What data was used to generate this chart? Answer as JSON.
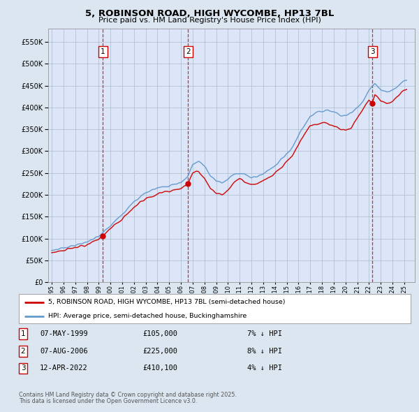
{
  "title": "5, ROBINSON ROAD, HIGH WYCOMBE, HP13 7BL",
  "subtitle": "Price paid vs. HM Land Registry's House Price Index (HPI)",
  "red_label": "5, ROBINSON ROAD, HIGH WYCOMBE, HP13 7BL (semi-detached house)",
  "blue_label": "HPI: Average price, semi-detached house, Buckinghamshire",
  "transactions": [
    {
      "num": 1,
      "date": "07-MAY-1999",
      "price": 105000,
      "pct": "7%",
      "dir": "↓",
      "x_year": 1999.36
    },
    {
      "num": 2,
      "date": "07-AUG-2006",
      "price": 225000,
      "pct": "8%",
      "dir": "↓",
      "x_year": 2006.6
    },
    {
      "num": 3,
      "date": "12-APR-2022",
      "price": 410100,
      "pct": "4%",
      "dir": "↓",
      "x_year": 2022.28
    }
  ],
  "footnote1": "Contains HM Land Registry data © Crown copyright and database right 2025.",
  "footnote2": "This data is licensed under the Open Government Licence v3.0.",
  "outer_bg": "#dce6f0",
  "plot_bg": "#dce6f8",
  "grid_color": "#aabbcc",
  "red_color": "#cc0000",
  "blue_color": "#6699cc",
  "dashed_color": "#cc0000",
  "ylim": [
    0,
    580000
  ],
  "yticks": [
    0,
    50000,
    100000,
    150000,
    200000,
    250000,
    300000,
    350000,
    400000,
    450000,
    500000,
    550000
  ],
  "xlim_start": 1994.7,
  "xlim_end": 2025.9,
  "hpi_control_points": [
    [
      1995.0,
      72000
    ],
    [
      1996.0,
      78000
    ],
    [
      1997.0,
      84000
    ],
    [
      1998.0,
      93000
    ],
    [
      1999.0,
      104000
    ],
    [
      1999.36,
      113000
    ],
    [
      2000.0,
      130000
    ],
    [
      2001.0,
      155000
    ],
    [
      2002.0,
      185000
    ],
    [
      2003.0,
      205000
    ],
    [
      2004.0,
      215000
    ],
    [
      2005.0,
      220000
    ],
    [
      2006.0,
      228000
    ],
    [
      2006.6,
      243000
    ],
    [
      2007.0,
      270000
    ],
    [
      2007.5,
      278000
    ],
    [
      2008.0,
      265000
    ],
    [
      2008.5,
      245000
    ],
    [
      2009.0,
      232000
    ],
    [
      2009.5,
      228000
    ],
    [
      2010.0,
      235000
    ],
    [
      2010.5,
      248000
    ],
    [
      2011.0,
      252000
    ],
    [
      2011.5,
      245000
    ],
    [
      2012.0,
      240000
    ],
    [
      2012.5,
      242000
    ],
    [
      2013.0,
      248000
    ],
    [
      2013.5,
      255000
    ],
    [
      2014.0,
      265000
    ],
    [
      2014.5,
      280000
    ],
    [
      2015.0,
      295000
    ],
    [
      2015.5,
      310000
    ],
    [
      2016.0,
      335000
    ],
    [
      2016.5,
      360000
    ],
    [
      2017.0,
      380000
    ],
    [
      2017.5,
      388000
    ],
    [
      2018.0,
      392000
    ],
    [
      2018.5,
      395000
    ],
    [
      2019.0,
      390000
    ],
    [
      2019.5,
      385000
    ],
    [
      2020.0,
      382000
    ],
    [
      2020.5,
      388000
    ],
    [
      2021.0,
      400000
    ],
    [
      2021.5,
      415000
    ],
    [
      2022.0,
      440000
    ],
    [
      2022.28,
      450000
    ],
    [
      2022.5,
      455000
    ],
    [
      2023.0,
      440000
    ],
    [
      2023.5,
      435000
    ],
    [
      2024.0,
      440000
    ],
    [
      2024.5,
      450000
    ],
    [
      2025.0,
      462000
    ]
  ],
  "red_control_points": [
    [
      1995.0,
      68000
    ],
    [
      1996.0,
      73000
    ],
    [
      1997.0,
      79000
    ],
    [
      1998.0,
      87000
    ],
    [
      1999.0,
      98000
    ],
    [
      1999.36,
      105000
    ],
    [
      2000.0,
      122000
    ],
    [
      2001.0,
      145000
    ],
    [
      2002.0,
      172000
    ],
    [
      2003.0,
      192000
    ],
    [
      2004.0,
      200000
    ],
    [
      2005.0,
      208000
    ],
    [
      2006.0,
      215000
    ],
    [
      2006.6,
      225000
    ],
    [
      2007.0,
      250000
    ],
    [
      2007.5,
      255000
    ],
    [
      2008.0,
      238000
    ],
    [
      2008.5,
      215000
    ],
    [
      2009.0,
      205000
    ],
    [
      2009.5,
      200000
    ],
    [
      2010.0,
      210000
    ],
    [
      2010.5,
      228000
    ],
    [
      2011.0,
      238000
    ],
    [
      2011.5,
      230000
    ],
    [
      2012.0,
      222000
    ],
    [
      2012.5,
      225000
    ],
    [
      2013.0,
      232000
    ],
    [
      2013.5,
      240000
    ],
    [
      2014.0,
      250000
    ],
    [
      2014.5,
      262000
    ],
    [
      2015.0,
      275000
    ],
    [
      2015.5,
      292000
    ],
    [
      2016.0,
      315000
    ],
    [
      2016.5,
      340000
    ],
    [
      2017.0,
      358000
    ],
    [
      2017.5,
      362000
    ],
    [
      2018.0,
      365000
    ],
    [
      2018.5,
      365000
    ],
    [
      2019.0,
      358000
    ],
    [
      2019.5,
      352000
    ],
    [
      2020.0,
      348000
    ],
    [
      2020.5,
      355000
    ],
    [
      2021.0,
      375000
    ],
    [
      2021.5,
      395000
    ],
    [
      2022.0,
      418000
    ],
    [
      2022.28,
      410100
    ],
    [
      2022.5,
      430000
    ],
    [
      2023.0,
      415000
    ],
    [
      2023.5,
      408000
    ],
    [
      2024.0,
      415000
    ],
    [
      2024.5,
      425000
    ],
    [
      2025.0,
      440000
    ]
  ]
}
